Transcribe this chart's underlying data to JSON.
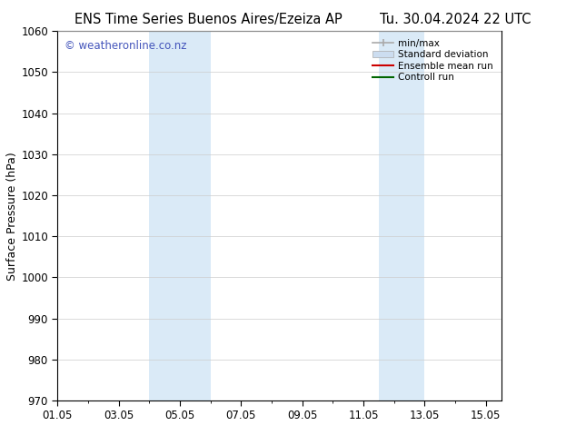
{
  "title_left": "ENS Time Series Buenos Aires/Ezeiza AP",
  "title_right": "Tu. 30.04.2024 22 UTC",
  "ylabel": "Surface Pressure (hPa)",
  "ylim": [
    970,
    1060
  ],
  "yticks": [
    970,
    980,
    990,
    1000,
    1010,
    1020,
    1030,
    1040,
    1050,
    1060
  ],
  "xtick_labels": [
    "01.05",
    "03.05",
    "05.05",
    "07.05",
    "09.05",
    "11.05",
    "13.05",
    "15.05"
  ],
  "xtick_positions": [
    0,
    2,
    4,
    6,
    8,
    10,
    12,
    14
  ],
  "xlim": [
    0,
    14.5
  ],
  "shaded_regions": [
    {
      "x_start": 3.0,
      "x_end": 5.0,
      "color": "#daeaf7"
    },
    {
      "x_start": 10.5,
      "x_end": 12.0,
      "color": "#daeaf7"
    }
  ],
  "watermark": "© weatheronline.co.nz",
  "watermark_color": "#4455bb",
  "legend_items": [
    {
      "label": "min/max",
      "color": "#aaaaaa",
      "type": "line"
    },
    {
      "label": "Standard deviation",
      "color": "#ccddf0",
      "type": "patch"
    },
    {
      "label": "Ensemble mean run",
      "color": "#cc0000",
      "type": "line"
    },
    {
      "label": "Controll run",
      "color": "#006600",
      "type": "line"
    }
  ],
  "background_color": "#ffffff",
  "grid_color": "#cccccc",
  "title_fontsize": 10.5,
  "tick_fontsize": 8.5,
  "ylabel_fontsize": 9,
  "watermark_fontsize": 8.5
}
